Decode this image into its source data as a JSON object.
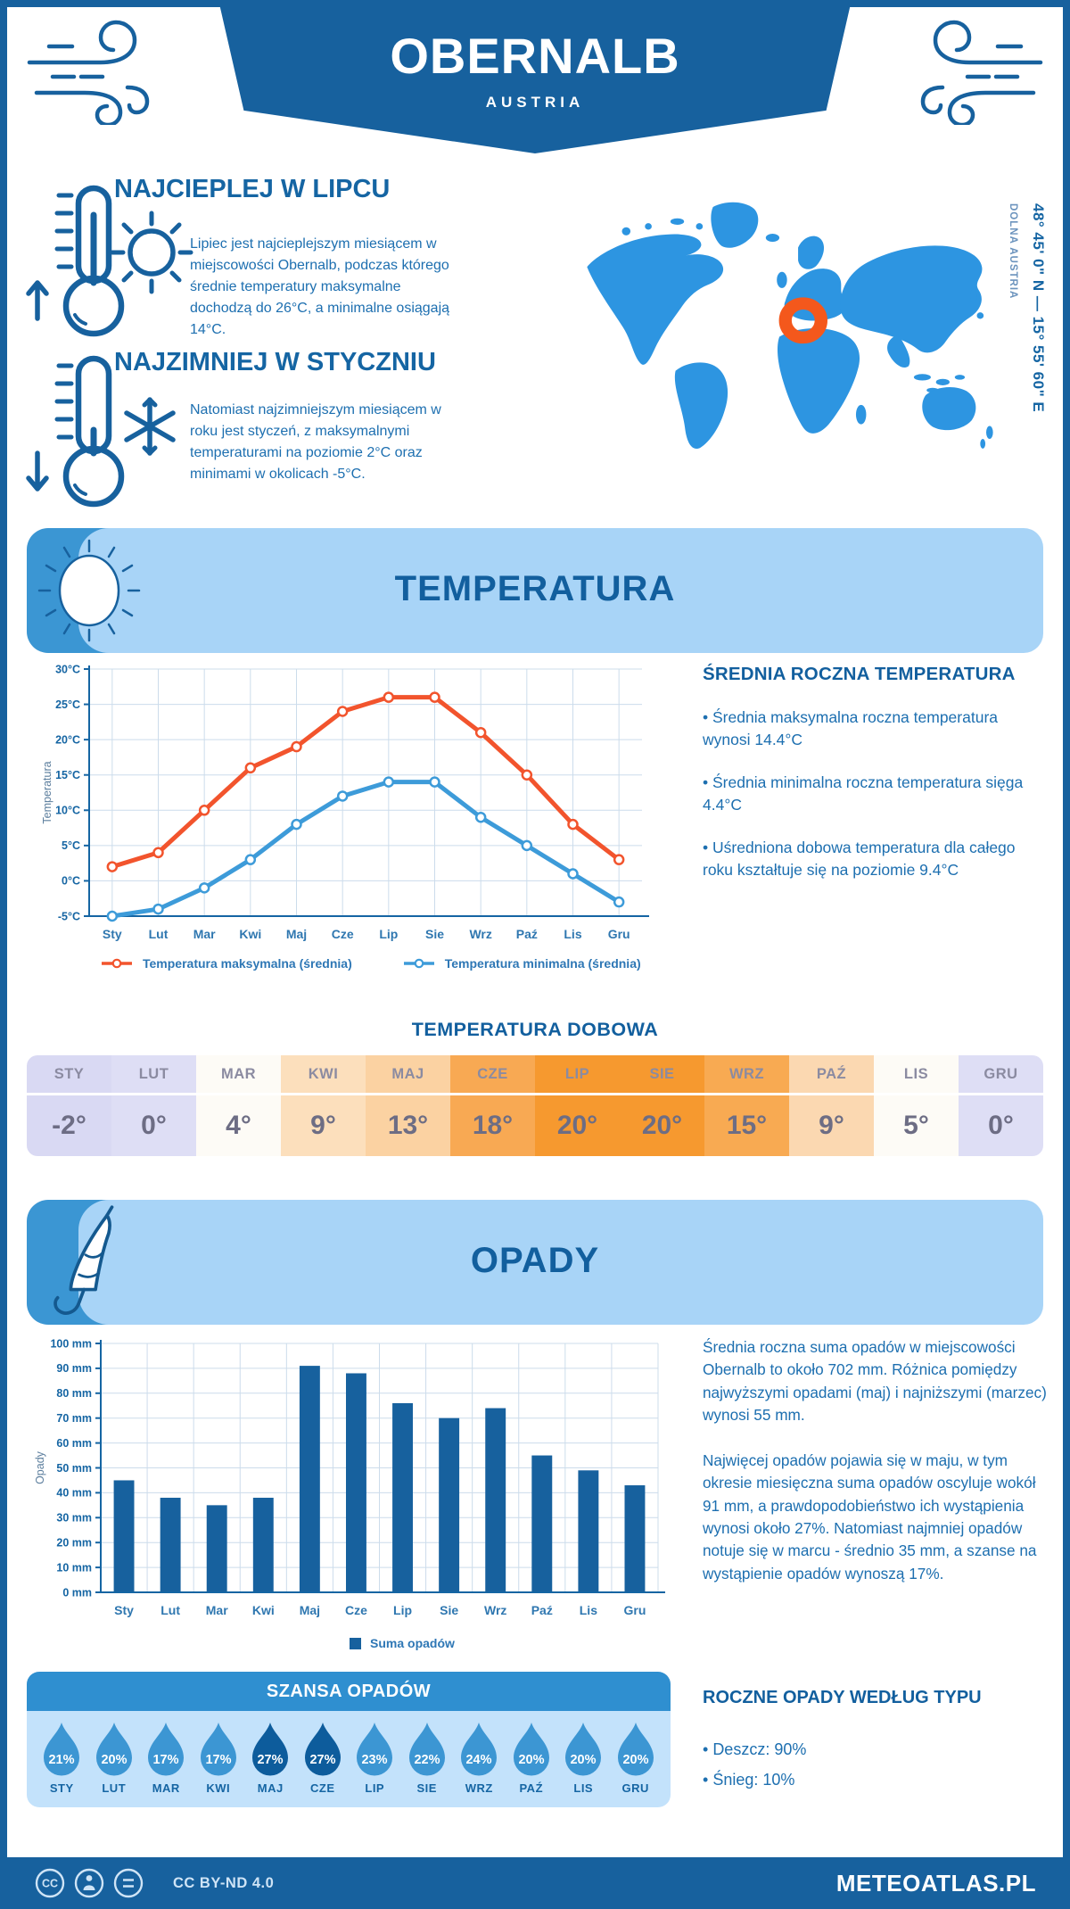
{
  "header": {
    "title": "OBERNALB",
    "subtitle": "AUSTRIA"
  },
  "location": {
    "coordinates": "48° 45' 0\" N — 15° 55' 60\" E",
    "region": "DOLNA AUSTRIA"
  },
  "highlights": [
    {
      "title": "NAJCIEPLEJ W LIPCU",
      "text": "Lipiec jest najcieplejszym miesiącem w miejscowości Obernalb, podczas którego średnie temperatury maksymalne dochodzą do 26°C, a minimalne osiągają 14°C."
    },
    {
      "title": "NAJZIMNIEJ W STYCZNIU",
      "text": "Natomiast najzimniejszym miesiącem w roku jest styczeń, z maksymalnymi temperaturami na poziomie 2°C oraz minimami w okolicach -5°C."
    }
  ],
  "temperature_section": {
    "title": "TEMPERATURA",
    "annual_heading": "ŚREDNIA ROCZNA TEMPERATURA",
    "annual_bullets": [
      "Średnia maksymalna roczna temperatura wynosi 14.4°C",
      "Średnia minimalna roczna temperatura sięga 4.4°C",
      "Uśredniona dobowa temperatura dla całego roku kształtuje się na poziomie 9.4°C"
    ],
    "daily_heading": "TEMPERATURA DOBOWA",
    "daily": [
      {
        "month": "STY",
        "value": "-2°",
        "bg": "#d9d9f3"
      },
      {
        "month": "LUT",
        "value": "0°",
        "bg": "#dedef5"
      },
      {
        "month": "MAR",
        "value": "4°",
        "bg": "#fdfbf6"
      },
      {
        "month": "KWI",
        "value": "9°",
        "bg": "#fcdfbc"
      },
      {
        "month": "MAJ",
        "value": "13°",
        "bg": "#fbd2a2"
      },
      {
        "month": "CZE",
        "value": "18°",
        "bg": "#f8a953"
      },
      {
        "month": "LIP",
        "value": "20°",
        "bg": "#f6992f"
      },
      {
        "month": "SIE",
        "value": "20°",
        "bg": "#f6992f"
      },
      {
        "month": "WRZ",
        "value": "15°",
        "bg": "#f8aa52"
      },
      {
        "month": "PAŹ",
        "value": "9°",
        "bg": "#fbd8b1"
      },
      {
        "month": "LIS",
        "value": "5°",
        "bg": "#fdfbf6"
      },
      {
        "month": "GRU",
        "value": "0°",
        "bg": "#dedef5"
      }
    ]
  },
  "precipitation_section": {
    "title": "OPADY",
    "paragraphs": [
      "Średnia roczna suma opadów w miejscowości Obernalb to około 702 mm. Różnica pomiędzy najwyższymi opadami (maj) i najniższymi (marzec) wynosi 55 mm.",
      "Najwięcej opadów pojawia się w maju, w tym okresie miesięczna suma opadów oscyluje wokół 91 mm, a prawdopodobieństwo ich wystąpienia wynosi około 27%. Natomiast najmniej opadów notuje się w marcu - średnio 35 mm, a szanse na wystąpienie opadów wynoszą 17%."
    ],
    "type_heading": "ROCZNE OPADY WEDŁUG TYPU",
    "type_bullets": [
      "Deszcz: 90%",
      "Śnieg: 10%"
    ]
  },
  "chance_section": {
    "title": "SZANSA OPADÓW",
    "drop_color": "#3c96d3",
    "drop_color_dark": "#0d5c9c",
    "months": [
      {
        "month": "STY",
        "value": "21%",
        "dark": false
      },
      {
        "month": "LUT",
        "value": "20%",
        "dark": false
      },
      {
        "month": "MAR",
        "value": "17%",
        "dark": false
      },
      {
        "month": "KWI",
        "value": "17%",
        "dark": false
      },
      {
        "month": "MAJ",
        "value": "27%",
        "dark": true
      },
      {
        "month": "CZE",
        "value": "27%",
        "dark": true
      },
      {
        "month": "LIP",
        "value": "23%",
        "dark": false
      },
      {
        "month": "SIE",
        "value": "22%",
        "dark": false
      },
      {
        "month": "WRZ",
        "value": "24%",
        "dark": false
      },
      {
        "month": "PAŹ",
        "value": "20%",
        "dark": false
      },
      {
        "month": "LIS",
        "value": "20%",
        "dark": false
      },
      {
        "month": "GRU",
        "value": "20%",
        "dark": false
      }
    ]
  },
  "chart_data": [
    {
      "type": "line",
      "title": "Temperatura",
      "categories": [
        "Sty",
        "Lut",
        "Mar",
        "Kwi",
        "Maj",
        "Cze",
        "Lip",
        "Sie",
        "Wrz",
        "Paź",
        "Lis",
        "Gru"
      ],
      "series": [
        {
          "name": "Temperatura maksymalna (średnia)",
          "color": "#f2542d",
          "values": [
            2,
            4,
            10,
            16,
            19,
            24,
            26,
            26,
            21,
            15,
            8,
            3
          ]
        },
        {
          "name": "Temperatura minimalna (średnia)",
          "color": "#3d9bd9",
          "values": [
            -5,
            -4,
            -1,
            3,
            8,
            12,
            14,
            14,
            9,
            5,
            1,
            -3
          ]
        }
      ],
      "ylabel": "Temperatura",
      "xlabel": "",
      "ylim": [
        -5,
        30
      ],
      "ytick_step": 5,
      "ytick_suffix": "°C",
      "grid": true,
      "legend_position": "bottom"
    },
    {
      "type": "bar",
      "title": "Suma opadów",
      "categories": [
        "Sty",
        "Lut",
        "Mar",
        "Kwi",
        "Maj",
        "Cze",
        "Lip",
        "Sie",
        "Wrz",
        "Paź",
        "Lis",
        "Gru"
      ],
      "values": [
        45,
        38,
        35,
        38,
        91,
        88,
        76,
        70,
        74,
        55,
        49,
        43
      ],
      "color": "#17619e",
      "ylabel": "Opady",
      "xlabel": "",
      "ylim": [
        0,
        100
      ],
      "ytick_step": 10,
      "ytick_suffix": " mm",
      "grid": true,
      "legend": "Suma opadów",
      "legend_position": "bottom"
    }
  ],
  "footer": {
    "license": "CC BY-ND 4.0",
    "brand": "METEOATLAS.PL"
  }
}
